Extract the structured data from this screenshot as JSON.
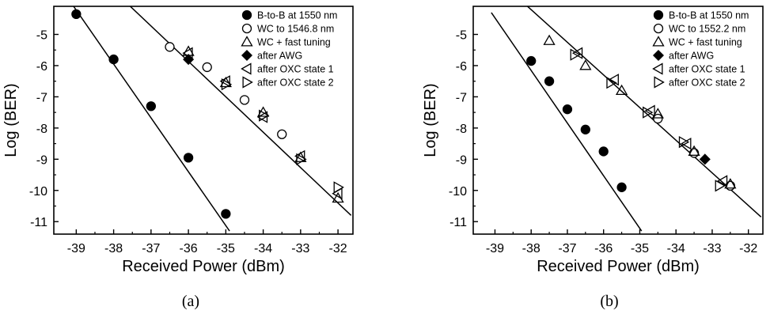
{
  "chart_data": [
    {
      "type": "scatter",
      "panel_label": "(a)",
      "xlabel": "Received Power (dBm)",
      "ylabel": "Log (BER)",
      "xlim": [
        -39.6,
        -31.6
      ],
      "ylim": [
        -11.4,
        -4.1
      ],
      "xticks": [
        -39,
        -38,
        -37,
        -36,
        -35,
        -34,
        -33,
        -32
      ],
      "yticks": [
        -5,
        -6,
        -7,
        -8,
        -9,
        -10,
        -11
      ],
      "grid": false,
      "legend_position": "top-right",
      "series": [
        {
          "name": "B-to-B at 1550 nm",
          "marker": "circle-filled",
          "x": [
            -39.0,
            -38.0,
            -37.0,
            -36.0,
            -35.0
          ],
          "y": [
            -4.35,
            -5.8,
            -7.3,
            -8.95,
            -10.75
          ]
        },
        {
          "name": "WC to 1546.8 nm",
          "marker": "circle-open",
          "x": [
            -36.5,
            -35.5,
            -34.5,
            -33.5
          ],
          "y": [
            -5.4,
            -6.05,
            -7.1,
            -8.2
          ]
        },
        {
          "name": "WC + fast tuning",
          "marker": "triangle-up-open",
          "x": [
            -36.0,
            -35.0,
            -34.0,
            -33.0,
            -32.0
          ],
          "y": [
            -5.55,
            -6.55,
            -7.5,
            -8.95,
            -10.25
          ]
        },
        {
          "name": "after AWG",
          "marker": "diamond-filled",
          "x": [
            -36.0
          ],
          "y": [
            -5.8
          ]
        },
        {
          "name": "after OXC state 1",
          "marker": "triangle-left-open",
          "x": [
            -36.0,
            -35.0,
            -34.0,
            -33.0,
            -32.0
          ],
          "y": [
            -5.6,
            -6.5,
            -7.65,
            -8.9,
            -10.1
          ]
        },
        {
          "name": "after OXC state 2",
          "marker": "triangle-right-open",
          "x": [
            -35.0,
            -34.0,
            -33.0,
            -32.0
          ],
          "y": [
            -6.6,
            -7.6,
            -9.0,
            -9.9
          ]
        }
      ],
      "fit_lines": [
        {
          "x": [
            -39.1,
            -34.9
          ],
          "y": [
            -4.05,
            -11.3
          ]
        },
        {
          "x": [
            -37.6,
            -31.65
          ],
          "y": [
            -4.05,
            -10.8
          ]
        }
      ]
    },
    {
      "type": "scatter",
      "panel_label": "(b)",
      "xlabel": "Received Power (dBm)",
      "ylabel": "Log (BER)",
      "xlim": [
        -39.6,
        -31.6
      ],
      "ylim": [
        -11.4,
        -4.1
      ],
      "xticks": [
        -39,
        -38,
        -37,
        -36,
        -35,
        -34,
        -33,
        -32
      ],
      "yticks": [
        -5,
        -6,
        -7,
        -8,
        -9,
        -10,
        -11
      ],
      "grid": false,
      "legend_position": "top-right",
      "series": [
        {
          "name": "B-to-B at 1550 nm",
          "marker": "circle-filled",
          "x": [
            -38.0,
            -37.5,
            -37.0,
            -36.5,
            -36.0,
            -35.5
          ],
          "y": [
            -5.85,
            -6.5,
            -7.4,
            -8.05,
            -8.75,
            -9.9
          ]
        },
        {
          "name": "WC to 1552.2 nm",
          "marker": "circle-open",
          "x": [
            -34.5,
            -33.5,
            -32.5
          ],
          "y": [
            -7.7,
            -8.8,
            -9.85
          ]
        },
        {
          "name": "WC + fast tuning",
          "marker": "triangle-up-open",
          "x": [
            -37.5,
            -36.5,
            -35.5,
            -34.5,
            -33.5,
            -32.5
          ],
          "y": [
            -5.2,
            -6.0,
            -6.8,
            -7.55,
            -8.75,
            -9.8
          ]
        },
        {
          "name": "after AWG",
          "marker": "diamond-filled",
          "x": [
            -33.2
          ],
          "y": [
            -9.0
          ]
        },
        {
          "name": "after OXC state 1",
          "marker": "triangle-left-open",
          "x": [
            -36.7,
            -35.7,
            -34.7,
            -33.7,
            -32.7
          ],
          "y": [
            -5.6,
            -6.45,
            -7.45,
            -8.5,
            -9.7
          ]
        },
        {
          "name": "after OXC state 2",
          "marker": "triangle-right-open",
          "x": [
            -36.8,
            -35.8,
            -34.8,
            -33.8,
            -32.8
          ],
          "y": [
            -5.65,
            -6.55,
            -7.5,
            -8.45,
            -9.85
          ]
        }
      ],
      "fit_lines": [
        {
          "x": [
            -39.1,
            -34.95
          ],
          "y": [
            -4.3,
            -11.3
          ]
        },
        {
          "x": [
            -38.15,
            -31.65
          ],
          "y": [
            -4.05,
            -10.85
          ]
        }
      ]
    }
  ]
}
